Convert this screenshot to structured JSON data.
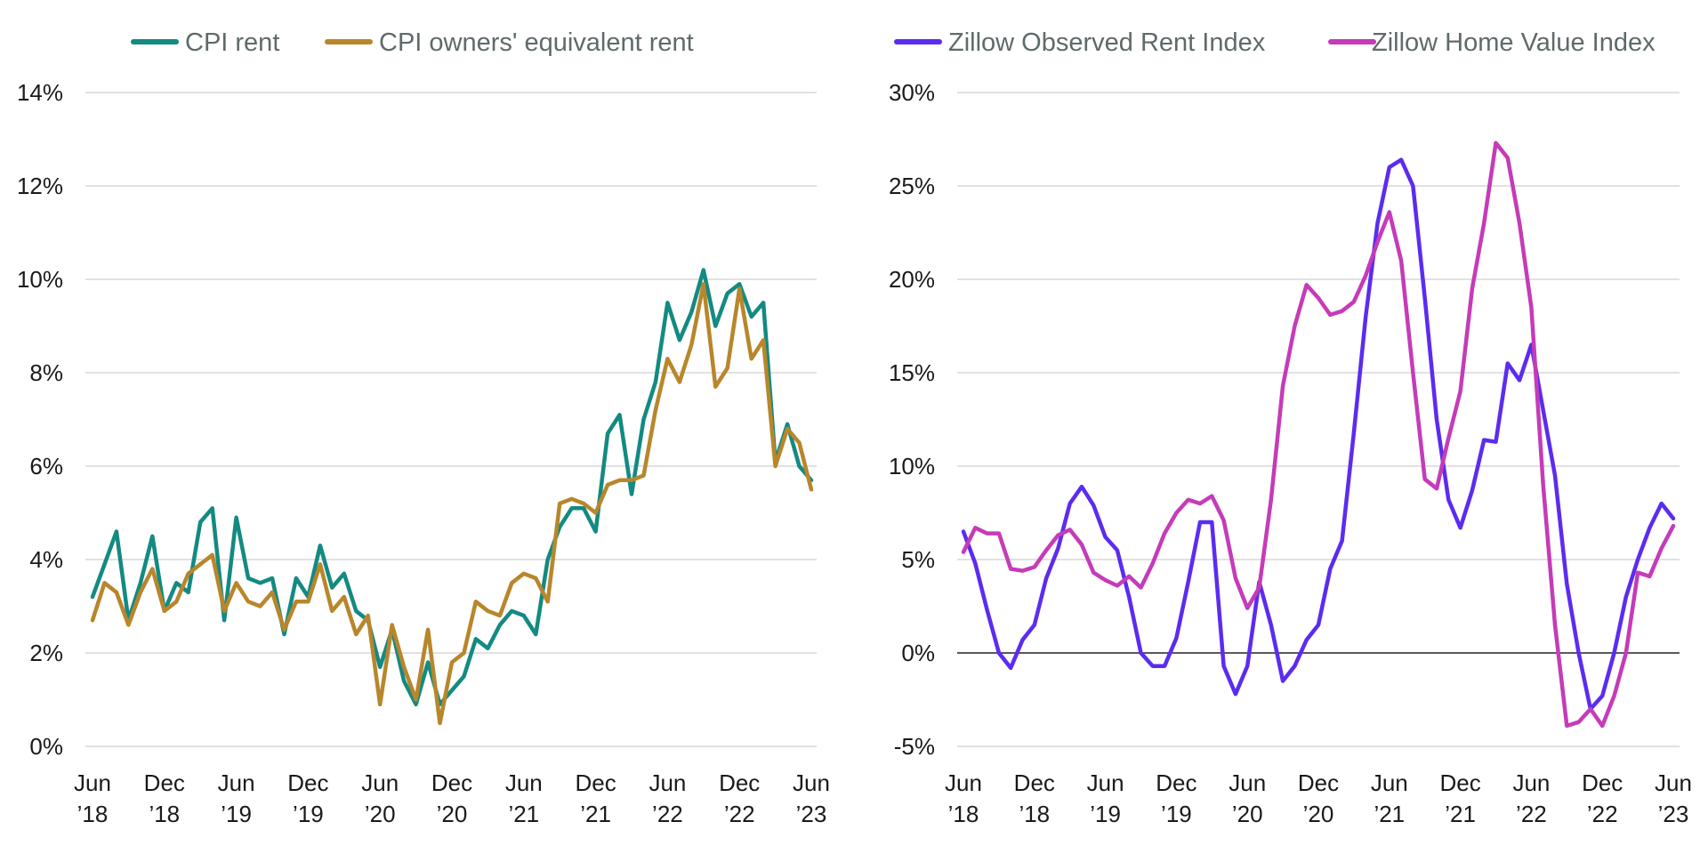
{
  "chart_data": [
    {
      "type": "line",
      "title": "",
      "xlabel": "",
      "ylabel": "",
      "ylim": [
        0,
        14
      ],
      "yticks": [
        "14%",
        "12%",
        "10%",
        "8%",
        "6%",
        "4%",
        "2%",
        "0%"
      ],
      "ytick_values": [
        14,
        12,
        10,
        8,
        6,
        4,
        2,
        0
      ],
      "xticks": [
        {
          "month": "Jun",
          "year": "’18",
          "pos": 0
        },
        {
          "month": "Dec",
          "year": "’18",
          "pos": 6
        },
        {
          "month": "Jun",
          "year": "’19",
          "pos": 12
        },
        {
          "month": "Dec",
          "year": "’19",
          "pos": 18
        },
        {
          "month": "Jun",
          "year": "’20",
          "pos": 24
        },
        {
          "month": "Dec",
          "year": "’20",
          "pos": 30
        },
        {
          "month": "Jun",
          "year": "’21",
          "pos": 36
        },
        {
          "month": "Dec",
          "year": "’21",
          "pos": 42
        },
        {
          "month": "Jun",
          "year": "’22",
          "pos": 48
        },
        {
          "month": "Dec",
          "year": "’22",
          "pos": 54
        },
        {
          "month": "Jun",
          "year": "’23",
          "pos": 60
        }
      ],
      "grid": true,
      "legend": "top",
      "series": [
        {
          "name": "CPI rent",
          "color": "#138a82",
          "values": [
            3.2,
            3.9,
            4.6,
            2.7,
            3.5,
            4.5,
            2.9,
            3.5,
            3.3,
            4.8,
            5.1,
            2.7,
            4.9,
            3.6,
            3.5,
            3.6,
            2.4,
            3.6,
            3.2,
            4.3,
            3.4,
            3.7,
            2.9,
            2.7,
            1.7,
            2.5,
            1.4,
            0.9,
            1.8,
            0.9,
            1.2,
            1.5,
            2.3,
            2.1,
            2.6,
            2.9,
            2.8,
            2.4,
            4.0,
            4.7,
            5.1,
            5.1,
            4.6,
            6.7,
            7.1,
            5.4,
            7.0,
            7.8,
            9.5,
            8.7,
            9.3,
            10.2,
            9.0,
            9.7,
            9.9,
            9.2,
            9.5,
            6.1,
            6.9,
            6.0,
            5.7
          ]
        },
        {
          "name": "CPI owners' equivalent rent",
          "color": "#b8862b",
          "values": [
            2.7,
            3.5,
            3.3,
            2.6,
            3.3,
            3.8,
            2.9,
            3.1,
            3.7,
            3.9,
            4.1,
            2.9,
            3.5,
            3.1,
            3.0,
            3.3,
            2.5,
            3.1,
            3.1,
            3.9,
            2.9,
            3.2,
            2.4,
            2.8,
            0.9,
            2.6,
            1.7,
            1.0,
            2.5,
            0.5,
            1.8,
            2.0,
            3.1,
            2.9,
            2.8,
            3.5,
            3.7,
            3.6,
            3.1,
            5.2,
            5.3,
            5.2,
            5.0,
            5.6,
            5.7,
            5.7,
            5.8,
            7.2,
            8.3,
            7.8,
            8.6,
            9.9,
            7.7,
            8.1,
            9.8,
            8.3,
            8.7,
            6.0,
            6.8,
            6.5,
            5.5
          ]
        }
      ]
    },
    {
      "type": "line",
      "title": "",
      "xlabel": "",
      "ylabel": "",
      "ylim": [
        -5,
        30
      ],
      "yticks": [
        "30%",
        "25%",
        "20%",
        "15%",
        "10%",
        "5%",
        "0%",
        "-5%"
      ],
      "ytick_values": [
        30,
        25,
        20,
        15,
        10,
        5,
        0,
        -5
      ],
      "zero_line": true,
      "xticks": [
        {
          "month": "Jun",
          "year": "’18",
          "pos": 0
        },
        {
          "month": "Dec",
          "year": "’18",
          "pos": 6
        },
        {
          "month": "Jun",
          "year": "’19",
          "pos": 12
        },
        {
          "month": "Dec",
          "year": "’19",
          "pos": 18
        },
        {
          "month": "Jun",
          "year": "’20",
          "pos": 24
        },
        {
          "month": "Dec",
          "year": "’20",
          "pos": 30
        },
        {
          "month": "Jun",
          "year": "’21",
          "pos": 36
        },
        {
          "month": "Dec",
          "year": "’21",
          "pos": 42
        },
        {
          "month": "Jun",
          "year": "’22",
          "pos": 48
        },
        {
          "month": "Dec",
          "year": "’22",
          "pos": 54
        },
        {
          "month": "Jun",
          "year": "’23",
          "pos": 60
        }
      ],
      "grid": true,
      "legend": "top",
      "series": [
        {
          "name": "Zillow Observed Rent Index",
          "color": "#5b2cf0",
          "values": [
            6.5,
            4.8,
            2.3,
            0.0,
            -0.8,
            0.7,
            1.5,
            4.0,
            5.6,
            8.0,
            8.9,
            7.9,
            6.2,
            5.5,
            3.0,
            0.0,
            -0.7,
            -0.7,
            0.8,
            3.8,
            7.0,
            7.0,
            -0.7,
            -2.2,
            -0.7,
            3.8,
            1.5,
            -1.5,
            -0.7,
            0.7,
            1.5,
            4.5,
            6.0,
            11.8,
            18.0,
            23.0,
            26.0,
            26.4,
            25.0,
            19.0,
            12.5,
            8.2,
            6.7,
            8.7,
            11.4,
            11.3,
            15.5,
            14.6,
            16.5,
            13.0,
            9.5,
            3.7,
            0.0,
            -3.0,
            -2.3,
            0.0,
            3.0,
            5.0,
            6.7,
            8.0,
            7.2
          ]
        },
        {
          "name": "Zillow Home Value Index",
          "color": "#c53bb8",
          "values": [
            5.4,
            6.7,
            6.4,
            6.4,
            4.5,
            4.4,
            4.6,
            5.5,
            6.3,
            6.6,
            5.8,
            4.3,
            3.9,
            3.6,
            4.1,
            3.5,
            4.8,
            6.4,
            7.5,
            8.2,
            8.0,
            8.4,
            7.1,
            4.0,
            2.4,
            3.5,
            8.2,
            14.3,
            17.5,
            19.7,
            19.0,
            18.1,
            18.3,
            18.8,
            20.2,
            22.0,
            23.6,
            21.0,
            15.0,
            9.3,
            8.8,
            11.5,
            14.0,
            19.5,
            23.0,
            27.3,
            26.5,
            23.0,
            18.5,
            9.0,
            1.5,
            -3.9,
            -3.7,
            -3.0,
            -3.9,
            -2.3,
            0.0,
            4.3,
            4.1,
            5.6,
            6.8
          ]
        }
      ]
    }
  ]
}
